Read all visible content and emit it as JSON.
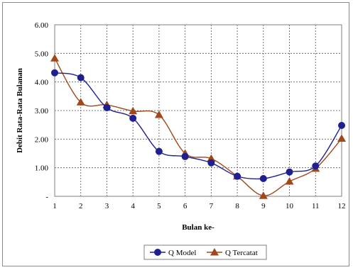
{
  "chart_data": {
    "type": "line",
    "title": "",
    "xlabel": "Bulan ke-",
    "ylabel": "Debit Rata-Rata Bulanan",
    "x": [
      1,
      2,
      3,
      4,
      5,
      6,
      7,
      8,
      9,
      10,
      11,
      12
    ],
    "x_tick_labels": [
      "1",
      "2",
      "3",
      "4",
      "5",
      "6",
      "7",
      "8",
      "9",
      "10",
      "11",
      "12"
    ],
    "ylim": [
      0,
      6
    ],
    "y_ticks": [
      0,
      1,
      2,
      3,
      4,
      5,
      6
    ],
    "y_tick_labels": [
      "-",
      "1.00",
      "2.00",
      "3.00",
      "4.00",
      "5.00",
      "6.00"
    ],
    "grid": true,
    "smooth": true,
    "legend_position": "bottom",
    "series": [
      {
        "name": "Q Model",
        "color": "#1f1f8f",
        "marker": "circle",
        "values": [
          4.32,
          4.15,
          3.1,
          2.73,
          1.57,
          1.39,
          1.17,
          0.7,
          0.62,
          0.85,
          1.06,
          2.48
        ]
      },
      {
        "name": "Q Tercatat",
        "color": "#a0481a",
        "marker": "triangle",
        "values": [
          4.83,
          3.29,
          3.2,
          2.98,
          2.85,
          1.5,
          1.32,
          0.7,
          0.02,
          0.52,
          0.97,
          2.02
        ]
      }
    ]
  }
}
